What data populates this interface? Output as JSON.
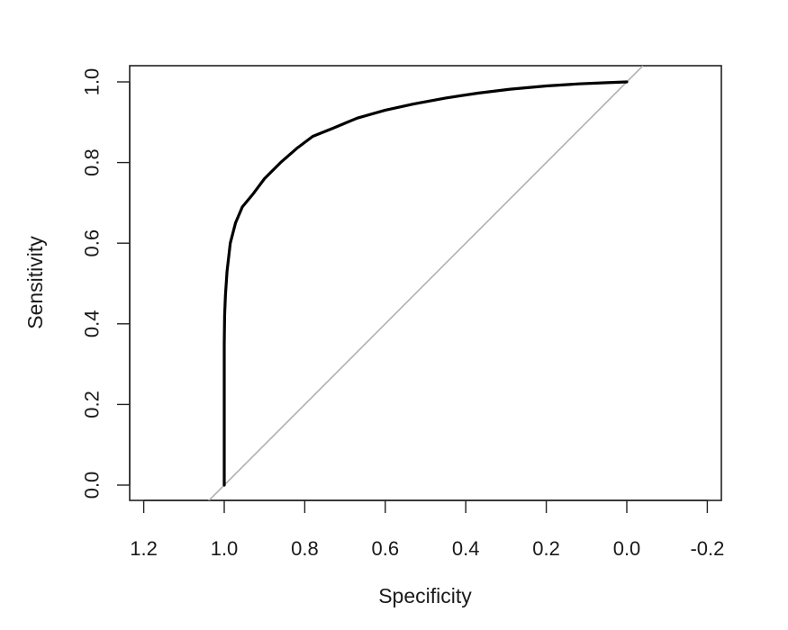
{
  "chart_data": {
    "type": "line",
    "title": "",
    "xlabel": "Specificity",
    "ylabel": "Sensitivity",
    "xlim": [
      1.2,
      -0.2
    ],
    "ylim": [
      0.0,
      1.0
    ],
    "x_reversed": true,
    "x_ticks": [
      "1.2",
      "1.0",
      "0.8",
      "0.6",
      "0.4",
      "0.2",
      "0.0",
      "-0.2"
    ],
    "y_ticks": [
      "0.0",
      "0.2",
      "0.4",
      "0.6",
      "0.8",
      "1.0"
    ],
    "grid": false,
    "legend": "none",
    "series": [
      {
        "color": "#000000",
        "x": [
          1.0,
          1.0,
          1.0,
          0.999,
          0.997,
          0.993,
          0.985,
          0.972,
          0.955,
          0.93,
          0.9,
          0.86,
          0.82,
          0.78,
          0.73,
          0.67,
          0.6,
          0.53,
          0.45,
          0.37,
          0.29,
          0.2,
          0.12,
          0.05,
          0.0
        ],
        "y": [
          0.0,
          0.2,
          0.35,
          0.42,
          0.47,
          0.53,
          0.6,
          0.65,
          0.69,
          0.72,
          0.76,
          0.8,
          0.835,
          0.865,
          0.885,
          0.91,
          0.93,
          0.945,
          0.96,
          0.972,
          0.982,
          0.99,
          0.995,
          0.998,
          1.0
        ]
      }
    ],
    "reference_line": {
      "x": [
        1.04,
        -0.04
      ],
      "y": [
        -0.04,
        1.04
      ],
      "color": "#b0b0b0"
    }
  }
}
